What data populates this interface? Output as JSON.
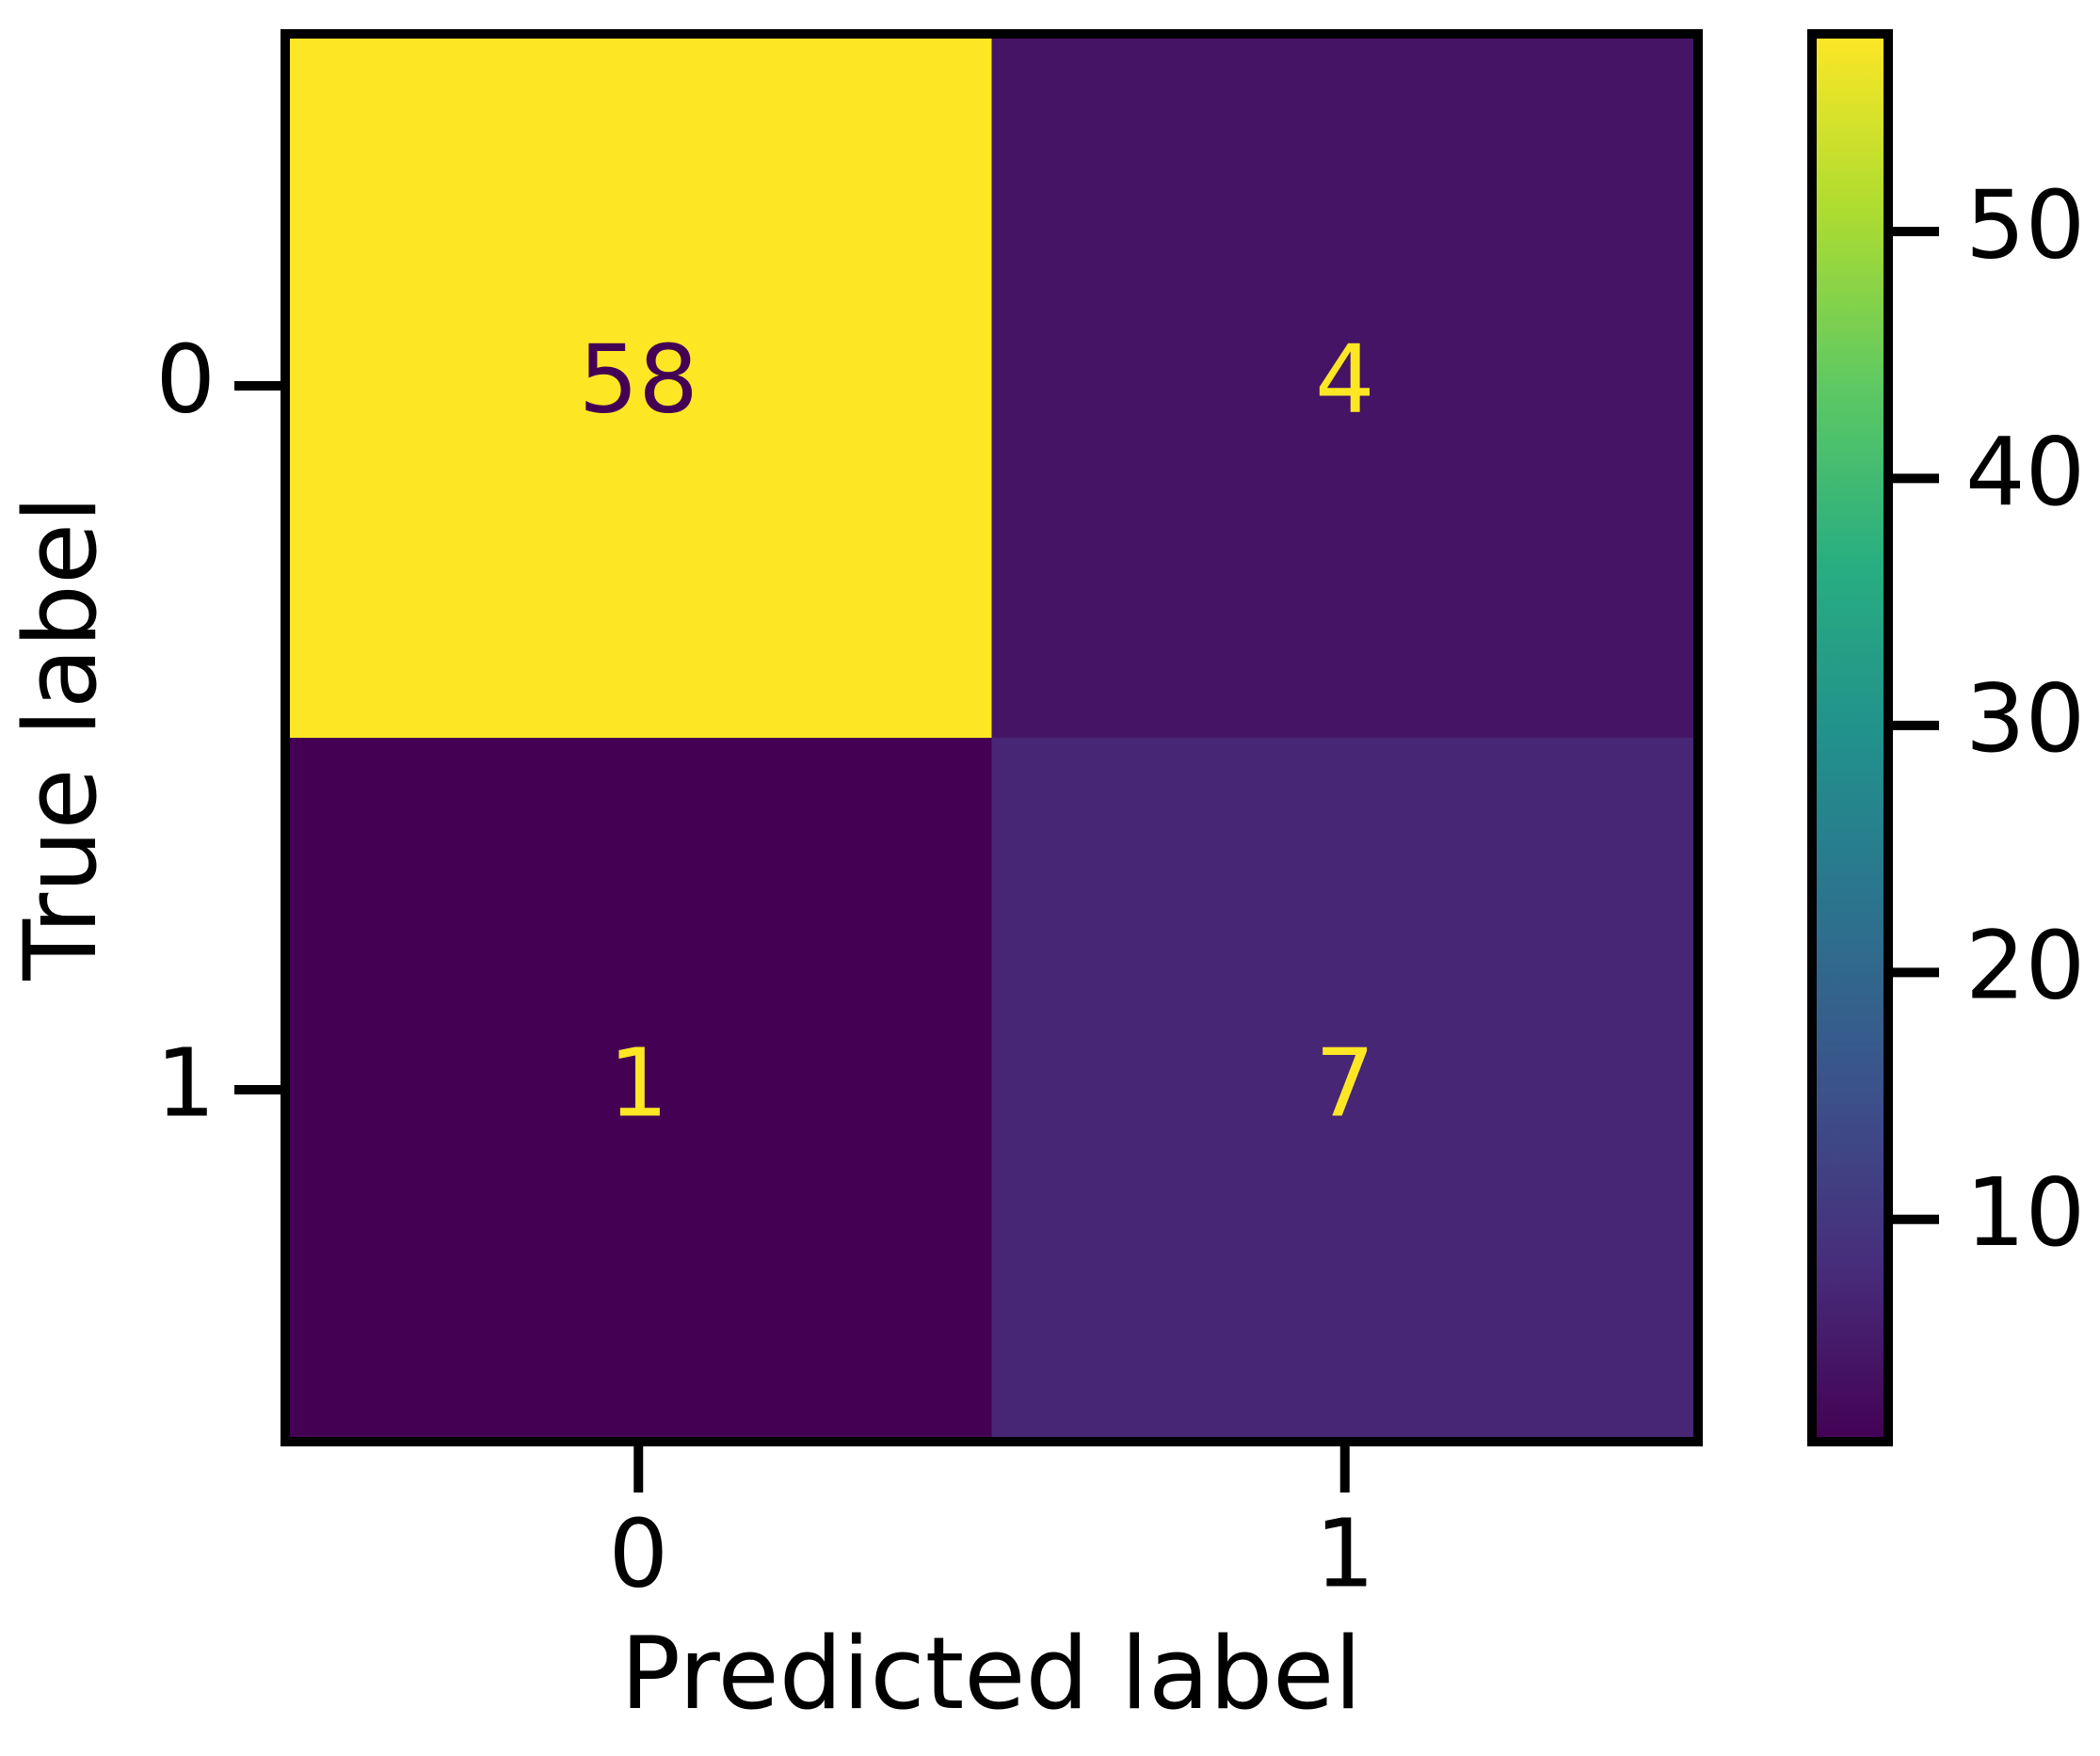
{
  "chart_data": {
    "type": "heatmap",
    "x_label": "Predicted label",
    "y_label": "True label",
    "x_categories": [
      "0",
      "1"
    ],
    "y_categories": [
      "0",
      "1"
    ],
    "values": [
      [
        58,
        4
      ],
      [
        1,
        7
      ]
    ],
    "colormap": "viridis",
    "clim": [
      1,
      58
    ],
    "colorbar_ticks": [
      10,
      20,
      30,
      40,
      50
    ]
  }
}
